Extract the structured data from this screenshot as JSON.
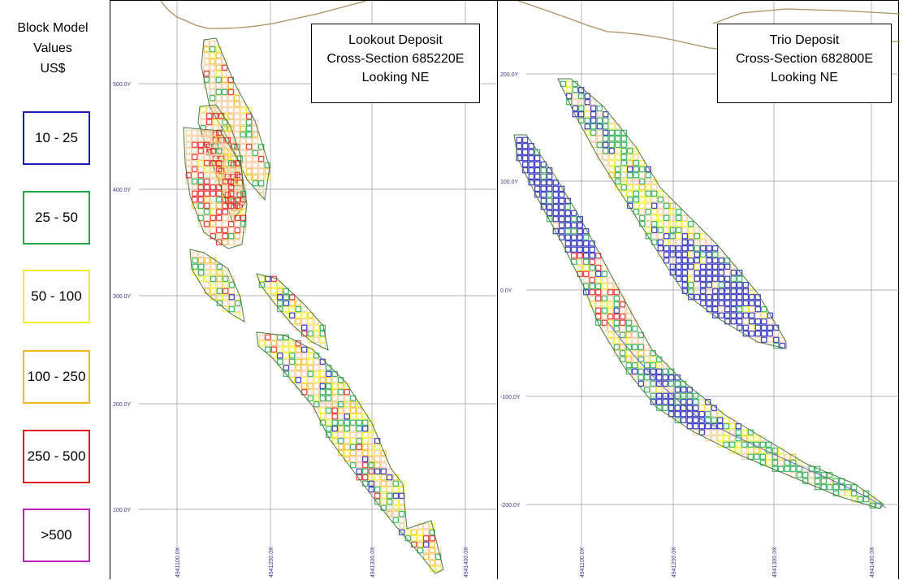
{
  "legend": {
    "title_lines": [
      "Block Model",
      "Values",
      "US$"
    ],
    "items": [
      {
        "label": "10 - 25",
        "color": "#1a1ab4"
      },
      {
        "label": "25 - 50",
        "color": "#1fa84a"
      },
      {
        "label": "50 - 100",
        "color": "#f2ef20"
      },
      {
        "label": "100 - 250",
        "color": "#f2b818"
      },
      {
        "label": "250 - 500",
        "color": "#e01a1a"
      },
      {
        "label": ">500",
        "color": "#c41ec4"
      }
    ]
  },
  "sections": [
    {
      "title_lines": [
        "Lookout Deposit",
        "Cross-Section 685220E",
        "Looking NE"
      ],
      "y_labels": [
        "500.0Y",
        "400.0Y",
        "300.0Y",
        "200.0Y",
        "100.0Y"
      ],
      "x_labels": [
        "4941100.0X",
        "4941200.0X",
        "4941300.0X",
        "4941400.0X"
      ]
    },
    {
      "title_lines": [
        "Trio Deposit",
        "Cross-Section 682800E",
        "Looking NE"
      ],
      "y_labels": [
        "200.0Y",
        "100.0Y",
        "0.0Y",
        "-100.0Y",
        "-200.0Y"
      ],
      "x_labels": [
        "4941100.0X",
        "4941200.0X",
        "4941300.0X",
        "4941400.0X"
      ]
    }
  ]
}
